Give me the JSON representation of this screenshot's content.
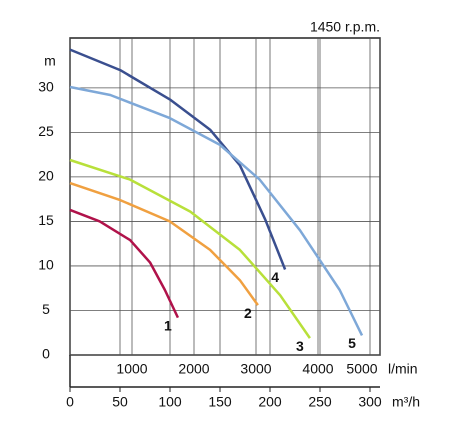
{
  "chart_data": {
    "type": "line",
    "title": "1450 r.p.m.",
    "y_label": "m",
    "x_label": "l/min",
    "x2_label": "m³/h",
    "xlim": [
      0,
      5000
    ],
    "xticks": [
      1000,
      2000,
      3000,
      4000,
      5000
    ],
    "x2lim": [
      0,
      310
    ],
    "x2ticks": [
      0,
      50,
      100,
      150,
      200,
      250,
      300
    ],
    "ylim": [
      0,
      35.6
    ],
    "yticks": [
      0,
      5,
      10,
      15,
      20,
      25,
      30
    ],
    "grid": true,
    "series": [
      {
        "name": "1",
        "color": "#b0124a",
        "x": [
          0,
          480,
          970,
          1290,
          1530,
          1740
        ],
        "values": [
          16.3,
          15,
          12.9,
          10.4,
          7.3,
          4.2
        ]
      },
      {
        "name": "2",
        "color": "#f0a040",
        "x": [
          0,
          810,
          1610,
          2260,
          2740,
          3030
        ],
        "values": [
          19.3,
          17.4,
          15,
          11.8,
          8.4,
          5.6
        ]
      },
      {
        "name": "3",
        "color": "#b8e03a",
        "x": [
          0,
          970,
          1940,
          2740,
          3390,
          3870
        ],
        "values": [
          21.9,
          19.7,
          16.1,
          11.8,
          6.7,
          1.9
        ]
      },
      {
        "name": "4",
        "color": "#3a4f8f",
        "x": [
          0,
          810,
          1610,
          2260,
          2740,
          3150,
          3470
        ],
        "values": [
          34.3,
          32,
          28.7,
          25.3,
          21.3,
          15.2,
          9.6
        ]
      },
      {
        "name": "5",
        "color": "#7ea8d8",
        "x": [
          0,
          650,
          1610,
          2420,
          3060,
          3710,
          4350,
          4710
        ],
        "values": [
          30.1,
          29.2,
          26.6,
          23.6,
          19.7,
          14,
          7.3,
          2.2
        ]
      }
    ]
  }
}
